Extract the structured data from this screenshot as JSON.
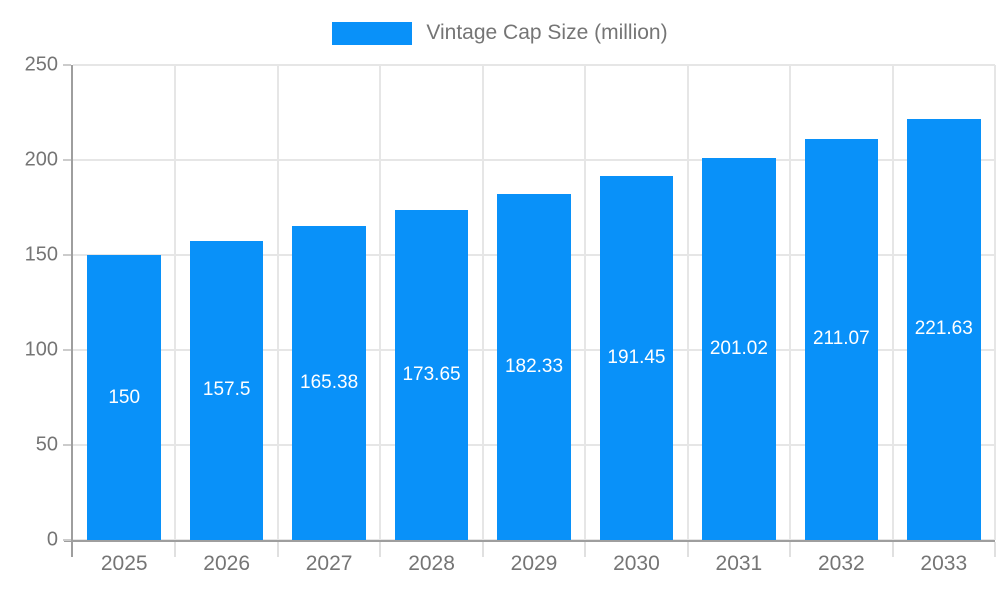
{
  "legend": {
    "label": "Vintage Cap Size (million)"
  },
  "colors": {
    "bar": "#0991f9",
    "grid": "#e6e6e6",
    "axis": "#9e9e9e",
    "tick_label": "#757575",
    "value_label": "#ffffff",
    "legend_text": "#757575"
  },
  "chart_data": {
    "type": "bar",
    "title": "",
    "legend_entries": [
      "Vintage Cap Size (million)"
    ],
    "legend_position": "top",
    "categories": [
      "2025",
      "2026",
      "2027",
      "2028",
      "2029",
      "2030",
      "2031",
      "2032",
      "2033"
    ],
    "series": [
      {
        "name": "Vintage Cap Size (million)",
        "values": [
          150,
          157.5,
          165.38,
          173.65,
          182.33,
          191.45,
          201.02,
          211.07,
          221.63
        ],
        "value_labels": [
          "150",
          "157.5",
          "165.38",
          "173.65",
          "182.33",
          "191.45",
          "201.02",
          "211.07",
          "221.63"
        ]
      }
    ],
    "xlabel": "",
    "ylabel": "",
    "ylim": [
      0,
      250
    ],
    "yticks": [
      0,
      50,
      100,
      150,
      200,
      250
    ],
    "ytick_labels": [
      "0",
      "50",
      "100",
      "150",
      "200",
      "250"
    ],
    "grid": true,
    "value_labels_shown": true,
    "value_label_position": "center-of-bar"
  }
}
